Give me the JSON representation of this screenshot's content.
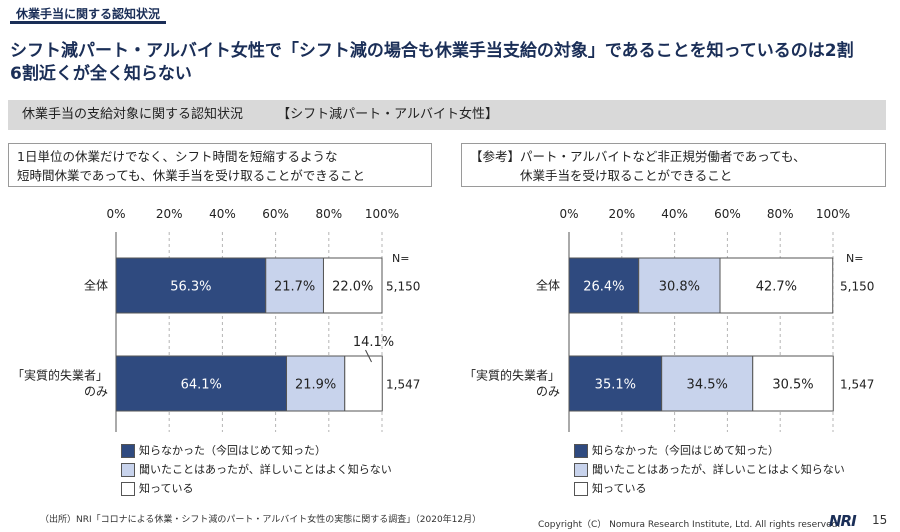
{
  "header": {
    "tag": "休業手当に関する認知状況",
    "headline_line1": "シフト減パート・アルバイト女性で「シフト減の場合も休業手当支給の対象」であることを知っているのは2割",
    "headline_line2": "6割近くが全く知らない"
  },
  "section": {
    "title": "休業手当の支給対象に関する認知状況",
    "target": "【シフト減パート・アルバイト女性】"
  },
  "chart_data": [
    {
      "type": "bar",
      "orientation": "horizontal-stacked-100",
      "question_line1": "1日単位の休業だけでなく、シフト時間を短縮するような",
      "question_line2": "短時間休業であっても、休業手当を受け取ることができること",
      "x_ticks": [
        "0%",
        "20%",
        "40%",
        "60%",
        "80%",
        "100%"
      ],
      "xlim": [
        0,
        100
      ],
      "n_header": "N=",
      "categories": [
        "全体",
        "「実質的失業者」のみ"
      ],
      "category_lines": [
        [
          "全体"
        ],
        [
          "「実質的失業者」",
          "のみ"
        ]
      ],
      "n_values": [
        "5,150",
        "1,547"
      ],
      "series": [
        {
          "name": "知らなかった（今回はじめて知った）",
          "values": [
            56.3,
            64.1
          ],
          "labels": [
            "56.3%",
            "64.1%"
          ]
        },
        {
          "name": "聞いたことはあったが、詳しいことはよく知らない",
          "values": [
            21.7,
            21.9
          ],
          "labels": [
            "21.7%",
            "21.9%"
          ]
        },
        {
          "name": "知っている",
          "values": [
            22.0,
            14.1
          ],
          "labels": [
            "22.0%",
            "14.1%"
          ]
        }
      ]
    },
    {
      "type": "bar",
      "orientation": "horizontal-stacked-100",
      "question_line1": "【参考】パート・アルバイトなど非正規労働者であっても、",
      "question_line2": "休業手当を受け取ることができること",
      "x_ticks": [
        "0%",
        "20%",
        "40%",
        "60%",
        "80%",
        "100%"
      ],
      "xlim": [
        0,
        100
      ],
      "n_header": "N=",
      "categories": [
        "全体",
        "「実質的失業者」のみ"
      ],
      "category_lines": [
        [
          "全体"
        ],
        [
          "「実質的失業者」",
          "のみ"
        ]
      ],
      "n_values": [
        "5,150",
        "1,547"
      ],
      "series": [
        {
          "name": "知らなかった（今回はじめて知った）",
          "values": [
            26.4,
            35.1
          ],
          "labels": [
            "26.4%",
            "35.1%"
          ]
        },
        {
          "name": "聞いたことはあったが、詳しいことはよく知らない",
          "values": [
            30.8,
            34.5
          ],
          "labels": [
            "30.8%",
            "34.5%"
          ]
        },
        {
          "name": "知っている",
          "values": [
            42.7,
            30.5
          ],
          "labels": [
            "42.7%",
            "30.5%"
          ]
        }
      ]
    }
  ],
  "colors": {
    "series": [
      "#2f4a7f",
      "#c8d3ec",
      "#ffffff"
    ],
    "series_text": [
      "#ffffff",
      "#222222",
      "#222222"
    ],
    "accent": "#1a2e57"
  },
  "legend": [
    "知らなかった（今回はじめて知った）",
    "聞いたことはあったが、詳しいことはよく知らない",
    "知っている"
  ],
  "footer": {
    "source": "（出所）NRI「コロナによる休業・シフト減のパート・アルバイト女性の実態に関する調査」（2020年12月）",
    "copyright": "Copyright（C） Nomura Research Institute, Ltd. All rights reserved.",
    "logo": "NRI",
    "page": "15"
  }
}
